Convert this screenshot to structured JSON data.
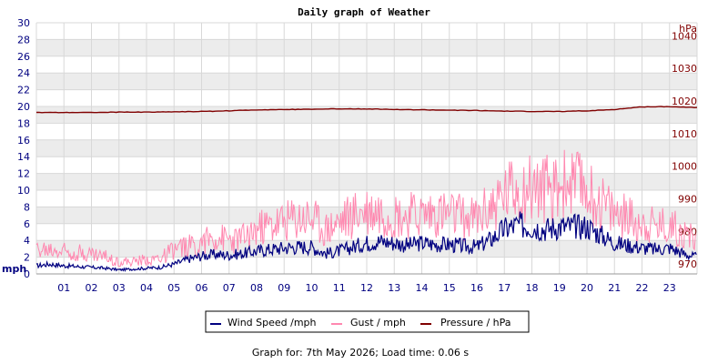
{
  "chart_data": {
    "type": "line",
    "title": "Daily graph of Weather",
    "left_axis": {
      "unit": "mph",
      "ylim": [
        0,
        30
      ],
      "ticks": [
        "0",
        "2",
        "4",
        "6",
        "8",
        "10",
        "12",
        "14",
        "16",
        "18",
        "20",
        "22",
        "24",
        "26",
        "28",
        "30"
      ]
    },
    "right_axis": {
      "unit": "hPa",
      "ylim": [
        967,
        1044
      ],
      "ticks": [
        "970",
        "980",
        "990",
        "1000",
        "1010",
        "1020",
        "1030",
        "1040"
      ]
    },
    "x": {
      "range_hours": [
        0,
        24
      ],
      "tick_labels": [
        "01",
        "02",
        "03",
        "04",
        "05",
        "06",
        "07",
        "08",
        "09",
        "10",
        "11",
        "12",
        "13",
        "14",
        "15",
        "16",
        "17",
        "18",
        "19",
        "20",
        "21",
        "22",
        "23"
      ]
    },
    "grid": true,
    "legend_position": "bottom",
    "series": [
      {
        "name": "Wind Speed /mph",
        "axis": "left",
        "color": "#000080",
        "x": [
          0,
          0.5,
          1,
          1.5,
          2,
          2.5,
          3,
          3.5,
          4,
          4.5,
          5,
          5.5,
          6,
          6.5,
          7,
          7.5,
          8,
          8.5,
          9,
          9.5,
          10,
          10.5,
          11,
          11.5,
          12,
          12.5,
          13,
          13.5,
          14,
          14.5,
          15,
          15.5,
          16,
          16.5,
          17,
          17.5,
          18,
          18.5,
          19,
          19.5,
          20,
          20.5,
          21,
          21.5,
          22,
          22.5,
          23,
          23.5,
          24
        ],
        "values": [
          1.0,
          1.2,
          1.0,
          0.9,
          0.8,
          0.7,
          0.5,
          0.6,
          0.7,
          0.8,
          1.2,
          1.8,
          2.2,
          2.4,
          2.3,
          2.5,
          2.8,
          3.0,
          3.2,
          3.3,
          3.3,
          2.5,
          2.8,
          3.3,
          3.8,
          4.0,
          3.8,
          3.5,
          3.8,
          3.6,
          3.6,
          3.4,
          3.3,
          4.2,
          5.5,
          6.0,
          5.8,
          5.5,
          5.8,
          5.8,
          5.8,
          4.8,
          3.8,
          3.5,
          3.2,
          3.0,
          3.2,
          2.5,
          2.0
        ]
      },
      {
        "name": "Gust / mph",
        "axis": "left",
        "color": "#ff88b0",
        "x": [
          0,
          0.5,
          1,
          1.5,
          2,
          2.5,
          3,
          3.5,
          4,
          4.5,
          5,
          5.5,
          6,
          6.5,
          7,
          7.5,
          8,
          8.5,
          9,
          9.5,
          10,
          10.5,
          11,
          11.5,
          12,
          12.5,
          13,
          13.5,
          14,
          14.5,
          15,
          15.5,
          16,
          16.5,
          17,
          17.5,
          18,
          18.5,
          19,
          19.5,
          20,
          20.5,
          21,
          21.5,
          22,
          22.5,
          23,
          23.5,
          24
        ],
        "values": [
          3.0,
          3.0,
          3.0,
          2.8,
          2.5,
          2.2,
          1.5,
          1.5,
          1.8,
          2.0,
          3.0,
          3.5,
          4.0,
          4.5,
          4.3,
          4.5,
          5.5,
          6.0,
          6.5,
          7.0,
          7.0,
          5.5,
          6.5,
          7.5,
          8.0,
          8.0,
          7.5,
          7.2,
          7.5,
          7.8,
          7.5,
          7.0,
          7.0,
          8.5,
          10.0,
          11.0,
          11.0,
          10.5,
          11.0,
          11.0,
          10.5,
          9.0,
          7.5,
          7.0,
          6.5,
          6.0,
          6.0,
          5.0,
          4.0
        ]
      },
      {
        "name": "Pressure / hPa",
        "axis": "right",
        "color": "#800000",
        "x": [
          0,
          1,
          2,
          3,
          4,
          5,
          6,
          7,
          8,
          9,
          10,
          11,
          12,
          13,
          14,
          15,
          16,
          17,
          18,
          19,
          20,
          21,
          22,
          23,
          24
        ],
        "values": [
          1016.5,
          1016.5,
          1016.5,
          1016.6,
          1016.6,
          1016.7,
          1016.8,
          1017.0,
          1017.3,
          1017.4,
          1017.5,
          1017.6,
          1017.6,
          1017.4,
          1017.3,
          1017.2,
          1017.1,
          1016.9,
          1016.8,
          1016.8,
          1017.0,
          1017.4,
          1018.2,
          1018.3,
          1018.0
        ]
      }
    ]
  },
  "footer": "Graph for: 7th May 2026; Load time: 0.06 s"
}
